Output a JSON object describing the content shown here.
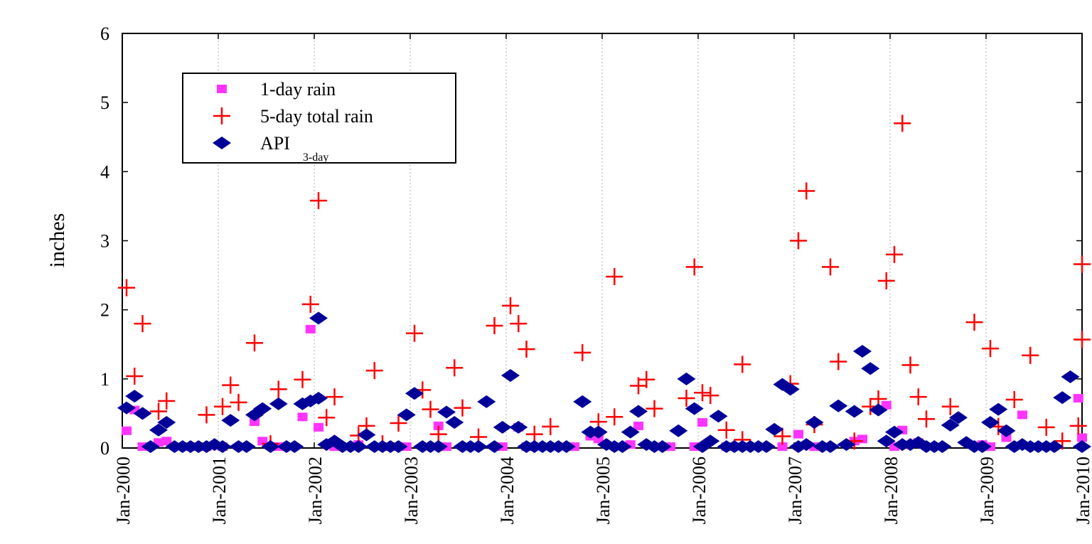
{
  "chart_data": {
    "type": "scatter",
    "title": "",
    "xlabel": "",
    "ylabel": "inches",
    "ylim": [
      0,
      6
    ],
    "xlim": [
      "2000-01",
      "2010-01"
    ],
    "y_ticks": [
      "0",
      "1",
      "2",
      "3",
      "4",
      "5",
      "6"
    ],
    "x_ticks": [
      "Jan-2000",
      "Jan-2001",
      "Jan-2002",
      "Jan-2003",
      "Jan-2004",
      "Jan-2005",
      "Jan-2006",
      "Jan-2007",
      "Jan-2008",
      "Jan-2009",
      "Jan-2010"
    ],
    "grid": "vertical dotted at each year",
    "legend_position": "top-left",
    "legend": {
      "items": [
        {
          "label": "1-day rain",
          "subscript": ""
        },
        {
          "label": "5-day total rain",
          "subscript": ""
        },
        {
          "label": "API",
          "subscript": "3-day"
        }
      ]
    },
    "series": [
      {
        "name": "1-day rain",
        "marker": "square",
        "color": "#ff33ff",
        "points": [
          [
            "2000-01",
            0.25
          ],
          [
            "2000-02",
            0.55
          ],
          [
            "2000-03",
            0.02
          ],
          [
            "2000-05",
            0.08
          ],
          [
            "2000-06",
            0.1
          ],
          [
            "2000-09",
            0.02
          ],
          [
            "2000-11",
            0.02
          ],
          [
            "2001-01",
            0.02
          ],
          [
            "2001-05",
            0.38
          ],
          [
            "2001-06",
            0.1
          ],
          [
            "2001-08",
            0.02
          ],
          [
            "2001-11",
            0.45
          ],
          [
            "2001-12",
            1.72
          ],
          [
            "2002-01",
            0.3
          ],
          [
            "2002-03",
            0.02
          ],
          [
            "2002-06",
            0.05
          ],
          [
            "2002-10",
            0.02
          ],
          [
            "2002-12",
            0.02
          ],
          [
            "2003-04",
            0.32
          ],
          [
            "2003-05",
            0.02
          ],
          [
            "2003-12",
            0.02
          ],
          [
            "2004-02",
            0.3
          ],
          [
            "2004-03",
            0.02
          ],
          [
            "2004-09",
            0.02
          ],
          [
            "2004-11",
            0.17
          ],
          [
            "2004-12",
            0.13
          ],
          [
            "2005-04",
            0.05
          ],
          [
            "2005-05",
            0.32
          ],
          [
            "2005-09",
            0.02
          ],
          [
            "2005-12",
            0.02
          ],
          [
            "2006-01",
            0.37
          ],
          [
            "2006-04",
            0.02
          ],
          [
            "2006-11",
            0.02
          ],
          [
            "2007-01",
            0.2
          ],
          [
            "2007-03",
            0.02
          ],
          [
            "2007-08",
            0.1
          ],
          [
            "2007-09",
            0.13
          ],
          [
            "2007-12",
            0.62
          ],
          [
            "2008-01",
            0.02
          ],
          [
            "2008-02",
            0.26
          ],
          [
            "2008-04",
            0.08
          ],
          [
            "2008-12",
            0.05
          ],
          [
            "2009-01",
            0.02
          ],
          [
            "2009-03",
            0.15
          ],
          [
            "2009-05",
            0.48
          ],
          [
            "2009-12",
            0.72
          ],
          [
            "2010-01",
            0.15
          ]
        ]
      },
      {
        "name": "5-day total rain",
        "marker": "plus",
        "color": "#ff0000",
        "points": [
          [
            "2000-01",
            2.32
          ],
          [
            "2000-02",
            1.04
          ],
          [
            "2000-03",
            1.8
          ],
          [
            "2000-05",
            0.53
          ],
          [
            "2000-06",
            0.68
          ],
          [
            "2000-11",
            0.48
          ],
          [
            "2001-01",
            0.6
          ],
          [
            "2001-02",
            0.91
          ],
          [
            "2001-03",
            0.66
          ],
          [
            "2001-05",
            1.52
          ],
          [
            "2001-07",
            0.06
          ],
          [
            "2001-08",
            0.85
          ],
          [
            "2001-11",
            0.99
          ],
          [
            "2001-12",
            2.08
          ],
          [
            "2002-01",
            3.58
          ],
          [
            "2002-02",
            0.44
          ],
          [
            "2002-03",
            0.74
          ],
          [
            "2002-06",
            0.18
          ],
          [
            "2002-07",
            0.32
          ],
          [
            "2002-08",
            1.12
          ],
          [
            "2002-09",
            0.06
          ],
          [
            "2002-11",
            0.36
          ],
          [
            "2003-01",
            1.66
          ],
          [
            "2003-02",
            0.84
          ],
          [
            "2003-03",
            0.56
          ],
          [
            "2003-04",
            0.2
          ],
          [
            "2003-06",
            1.16
          ],
          [
            "2003-07",
            0.58
          ],
          [
            "2003-09",
            0.16
          ],
          [
            "2003-11",
            1.77
          ],
          [
            "2004-01",
            2.06
          ],
          [
            "2004-02",
            1.8
          ],
          [
            "2004-03",
            1.43
          ],
          [
            "2004-04",
            0.2
          ],
          [
            "2004-06",
            0.31
          ],
          [
            "2004-10",
            1.38
          ],
          [
            "2004-12",
            0.38
          ],
          [
            "2005-02",
            2.48
          ],
          [
            "2005-02",
            0.45
          ],
          [
            "2005-05",
            0.9
          ],
          [
            "2005-06",
            0.99
          ],
          [
            "2005-07",
            0.57
          ],
          [
            "2005-11",
            0.72
          ],
          [
            "2005-12",
            2.62
          ],
          [
            "2006-01",
            0.8
          ],
          [
            "2006-02",
            0.76
          ],
          [
            "2006-04",
            0.26
          ],
          [
            "2006-06",
            1.21
          ],
          [
            "2006-06",
            0.12
          ],
          [
            "2006-11",
            0.17
          ],
          [
            "2006-12",
            0.93
          ],
          [
            "2007-01",
            3.0
          ],
          [
            "2007-02",
            3.72
          ],
          [
            "2007-03",
            0.34
          ],
          [
            "2007-05",
            2.62
          ],
          [
            "2007-06",
            1.25
          ],
          [
            "2007-08",
            0.1
          ],
          [
            "2007-10",
            0.6
          ],
          [
            "2007-11",
            0.71
          ],
          [
            "2007-12",
            2.42
          ],
          [
            "2008-01",
            2.8
          ],
          [
            "2008-02",
            4.7
          ],
          [
            "2008-03",
            1.2
          ],
          [
            "2008-04",
            0.74
          ],
          [
            "2008-05",
            0.42
          ],
          [
            "2008-08",
            0.6
          ],
          [
            "2008-11",
            1.82
          ],
          [
            "2009-01",
            1.44
          ],
          [
            "2009-02",
            0.31
          ],
          [
            "2009-04",
            0.7
          ],
          [
            "2009-06",
            1.34
          ],
          [
            "2009-08",
            0.3
          ],
          [
            "2009-10",
            0.1
          ],
          [
            "2009-12",
            0.32
          ],
          [
            "2010-01",
            1.57
          ],
          [
            "2010-01",
            2.66
          ]
        ]
      },
      {
        "name": "API 3-day",
        "marker": "diamond",
        "color": "#000099",
        "points": [
          [
            "2000-01",
            0.58
          ],
          [
            "2000-02",
            0.75
          ],
          [
            "2000-03",
            0.5
          ],
          [
            "2000-04",
            0.02
          ],
          [
            "2000-05",
            0.26
          ],
          [
            "2000-06",
            0.37
          ],
          [
            "2000-07",
            0.02
          ],
          [
            "2000-08",
            0.02
          ],
          [
            "2000-09",
            0.02
          ],
          [
            "2000-10",
            0.02
          ],
          [
            "2000-11",
            0.02
          ],
          [
            "2000-12",
            0.05
          ],
          [
            "2001-01",
            0.02
          ],
          [
            "2001-02",
            0.4
          ],
          [
            "2001-03",
            0.02
          ],
          [
            "2001-04",
            0.02
          ],
          [
            "2001-05",
            0.48
          ],
          [
            "2001-06",
            0.57
          ],
          [
            "2001-07",
            0.02
          ],
          [
            "2001-08",
            0.64
          ],
          [
            "2001-09",
            0.02
          ],
          [
            "2001-10",
            0.02
          ],
          [
            "2001-11",
            0.64
          ],
          [
            "2001-12",
            0.68
          ],
          [
            "2002-01",
            1.88
          ],
          [
            "2002-01",
            0.72
          ],
          [
            "2002-02",
            0.05
          ],
          [
            "2002-03",
            0.1
          ],
          [
            "2002-04",
            0.02
          ],
          [
            "2002-05",
            0.02
          ],
          [
            "2002-06",
            0.02
          ],
          [
            "2002-07",
            0.19
          ],
          [
            "2002-08",
            0.02
          ],
          [
            "2002-09",
            0.02
          ],
          [
            "2002-10",
            0.02
          ],
          [
            "2002-11",
            0.02
          ],
          [
            "2002-12",
            0.48
          ],
          [
            "2003-01",
            0.79
          ],
          [
            "2003-02",
            0.02
          ],
          [
            "2003-03",
            0.02
          ],
          [
            "2003-04",
            0.02
          ],
          [
            "2003-05",
            0.52
          ],
          [
            "2003-06",
            0.37
          ],
          [
            "2003-07",
            0.02
          ],
          [
            "2003-08",
            0.02
          ],
          [
            "2003-09",
            0.02
          ],
          [
            "2003-10",
            0.67
          ],
          [
            "2003-11",
            0.02
          ],
          [
            "2003-12",
            0.3
          ],
          [
            "2004-01",
            1.05
          ],
          [
            "2004-02",
            0.3
          ],
          [
            "2004-03",
            0.02
          ],
          [
            "2004-04",
            0.02
          ],
          [
            "2004-05",
            0.02
          ],
          [
            "2004-06",
            0.02
          ],
          [
            "2004-07",
            0.02
          ],
          [
            "2004-08",
            0.02
          ],
          [
            "2004-10",
            0.67
          ],
          [
            "2004-11",
            0.23
          ],
          [
            "2004-12",
            0.23
          ],
          [
            "2005-01",
            0.05
          ],
          [
            "2005-02",
            0.02
          ],
          [
            "2005-03",
            0.02
          ],
          [
            "2005-04",
            0.23
          ],
          [
            "2005-05",
            0.53
          ],
          [
            "2005-06",
            0.05
          ],
          [
            "2005-07",
            0.02
          ],
          [
            "2005-08",
            0.02
          ],
          [
            "2005-10",
            0.25
          ],
          [
            "2005-11",
            1.0
          ],
          [
            "2005-12",
            0.57
          ],
          [
            "2006-01",
            0.02
          ],
          [
            "2006-02",
            0.1
          ],
          [
            "2006-03",
            0.46
          ],
          [
            "2006-04",
            0.02
          ],
          [
            "2006-05",
            0.02
          ],
          [
            "2006-06",
            0.02
          ],
          [
            "2006-07",
            0.02
          ],
          [
            "2006-08",
            0.02
          ],
          [
            "2006-09",
            0.02
          ],
          [
            "2006-10",
            0.27
          ],
          [
            "2006-11",
            0.92
          ],
          [
            "2006-12",
            0.85
          ],
          [
            "2007-01",
            0.02
          ],
          [
            "2007-02",
            0.05
          ],
          [
            "2007-03",
            0.37
          ],
          [
            "2007-04",
            0.02
          ],
          [
            "2007-05",
            0.02
          ],
          [
            "2007-06",
            0.61
          ],
          [
            "2007-07",
            0.05
          ],
          [
            "2007-08",
            0.53
          ],
          [
            "2007-09",
            1.4
          ],
          [
            "2007-10",
            1.15
          ],
          [
            "2007-11",
            0.55
          ],
          [
            "2007-12",
            0.1
          ],
          [
            "2008-01",
            0.23
          ],
          [
            "2008-02",
            0.05
          ],
          [
            "2008-03",
            0.05
          ],
          [
            "2008-04",
            0.08
          ],
          [
            "2008-05",
            0.02
          ],
          [
            "2008-06",
            0.02
          ],
          [
            "2008-07",
            0.02
          ],
          [
            "2008-08",
            0.33
          ],
          [
            "2008-09",
            0.44
          ],
          [
            "2008-10",
            0.08
          ],
          [
            "2008-11",
            0.02
          ],
          [
            "2008-12",
            0.02
          ],
          [
            "2009-01",
            0.37
          ],
          [
            "2009-02",
            0.56
          ],
          [
            "2009-03",
            0.25
          ],
          [
            "2009-04",
            0.02
          ],
          [
            "2009-05",
            0.05
          ],
          [
            "2009-06",
            0.02
          ],
          [
            "2009-07",
            0.02
          ],
          [
            "2009-08",
            0.02
          ],
          [
            "2009-09",
            0.02
          ],
          [
            "2009-10",
            0.73
          ],
          [
            "2009-11",
            1.03
          ],
          [
            "2010-01",
            0.02
          ]
        ]
      }
    ]
  }
}
